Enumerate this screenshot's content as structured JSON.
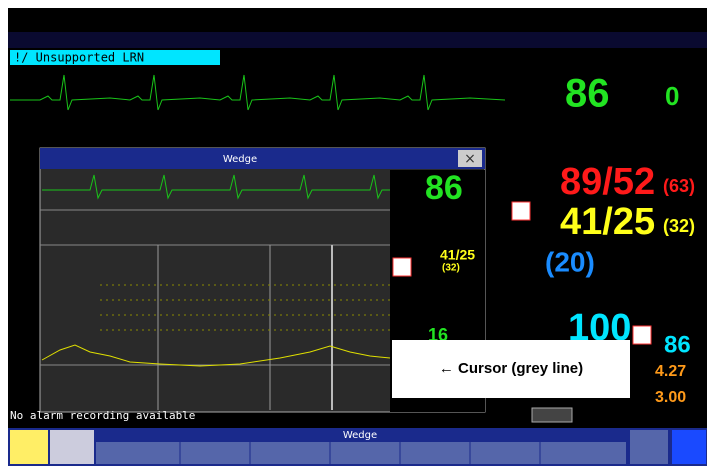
{
  "alarm": "!/ Unsupported LRN",
  "vitals": {
    "hr": "86",
    "pvc": "0",
    "abp": "89/52",
    "abp_mean": "(63)",
    "pap": "41/25",
    "pap_mean": "(32)",
    "cvp": "(20)",
    "spo2": "100",
    "pulse": "86",
    "co": "4.27",
    "ci": "3.00"
  },
  "wedge_window": {
    "title": "Wedge",
    "hr": "86",
    "pap": "41/25",
    "pap_mean": "(32)",
    "pawp": "16"
  },
  "status_message": "No alarm recording available",
  "bottom_bar": {
    "title": "Wedge"
  },
  "annotation": "← Cursor (grey line)"
}
